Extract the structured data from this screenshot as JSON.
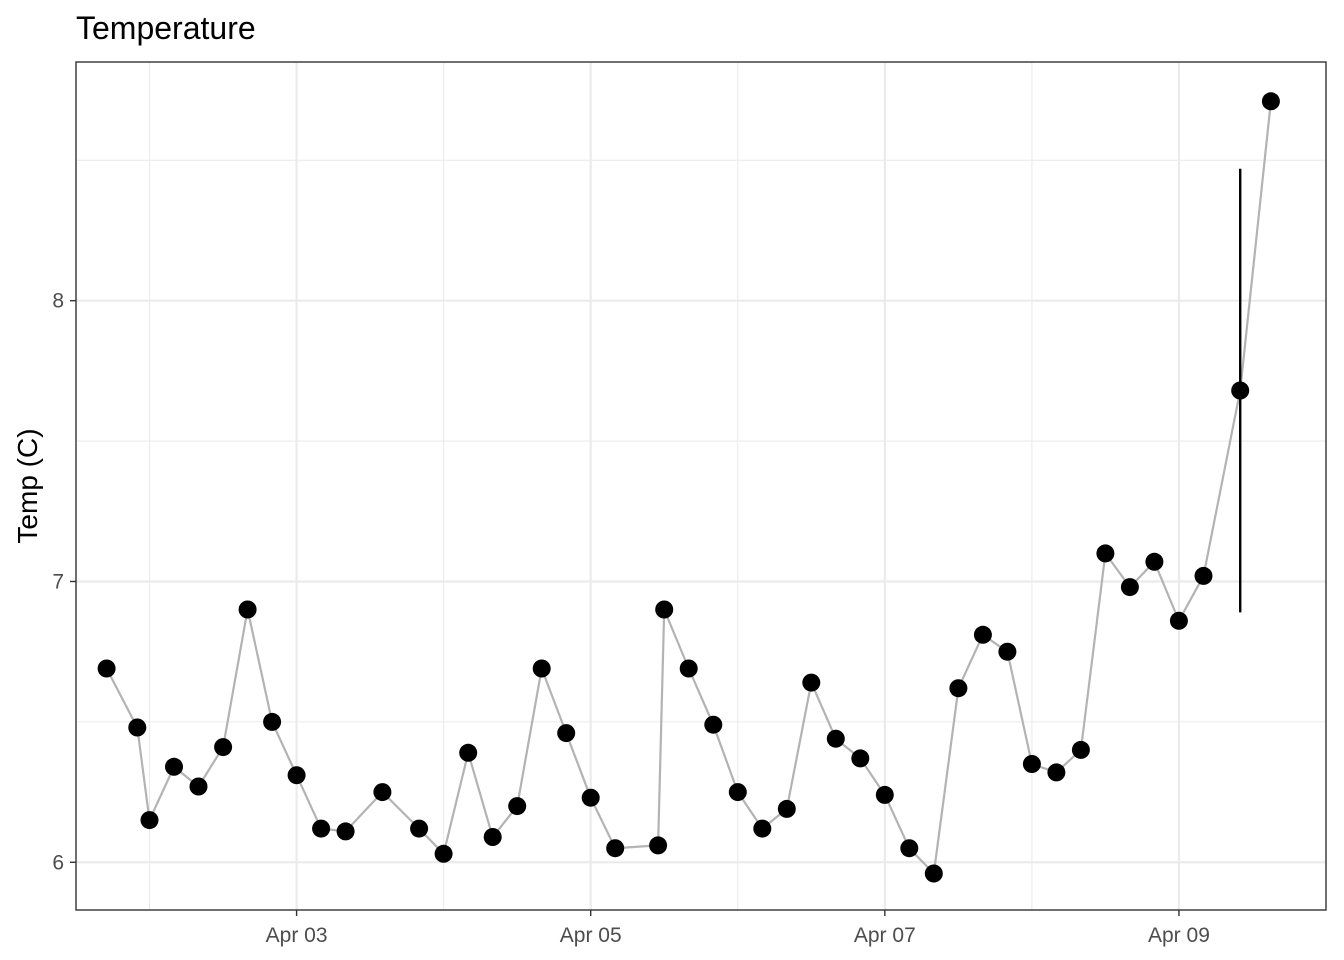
{
  "chart_data": {
    "type": "scatter",
    "title": "Temperature",
    "xlabel": "",
    "ylabel": "Temp (C)",
    "x_ticks": [
      "Apr 03",
      "Apr 05",
      "Apr 07",
      "Apr 09"
    ],
    "x_tick_dates": [
      "04-03",
      "04-05",
      "04-07",
      "04-09"
    ],
    "y_ticks": [
      6,
      7,
      8
    ],
    "xlim": [
      "04-01 12:00",
      "04-10 00:00"
    ],
    "ylim": [
      5.83,
      8.85
    ],
    "grid": true,
    "connect_points": true,
    "line_color": "#b3b3b3",
    "point_color": "#000000",
    "series": [
      {
        "x": [
          "04-01 17:00",
          "04-01 22:00",
          "04-02 00:00",
          "04-02 04:00",
          "04-02 08:00",
          "04-02 12:00",
          "04-02 16:00",
          "04-02 20:00",
          "04-03 00:00",
          "04-03 04:00",
          "04-03 08:00",
          "04-03 14:00",
          "04-03 20:00",
          "04-04 00:00",
          "04-04 04:00",
          "04-04 08:00",
          "04-04 12:00",
          "04-04 16:00",
          "04-04 20:00",
          "04-05 00:00",
          "04-05 04:00",
          "04-05 11:00",
          "04-05 12:00",
          "04-05 16:00",
          "04-05 20:00",
          "04-06 00:00",
          "04-06 04:00",
          "04-06 08:00",
          "04-06 12:00",
          "04-06 16:00",
          "04-06 20:00",
          "04-07 00:00",
          "04-07 04:00",
          "04-07 08:00",
          "04-07 12:00",
          "04-07 16:00",
          "04-07 20:00",
          "04-08 00:00",
          "04-08 04:00",
          "04-08 08:00",
          "04-08 12:00",
          "04-08 16:00",
          "04-08 20:00",
          "04-09 00:00",
          "04-09 04:00",
          "04-09 10:00",
          "04-09 15:00"
        ],
        "y": [
          6.69,
          6.48,
          6.15,
          6.34,
          6.27,
          6.41,
          6.9,
          6.5,
          6.31,
          6.12,
          6.11,
          6.25,
          6.12,
          6.03,
          6.39,
          6.09,
          6.2,
          6.69,
          6.46,
          6.23,
          6.05,
          6.06,
          6.9,
          6.69,
          6.49,
          6.25,
          6.12,
          6.19,
          6.64,
          6.44,
          6.37,
          6.24,
          6.05,
          5.96,
          6.62,
          6.81,
          6.75,
          6.35,
          6.32,
          6.4,
          7.1,
          6.98,
          7.07,
          6.86,
          7.02,
          7.68,
          8.71
        ]
      }
    ],
    "error_bars": [
      {
        "x": "04-09 10:00",
        "low": 6.89,
        "high": 8.47
      }
    ]
  }
}
